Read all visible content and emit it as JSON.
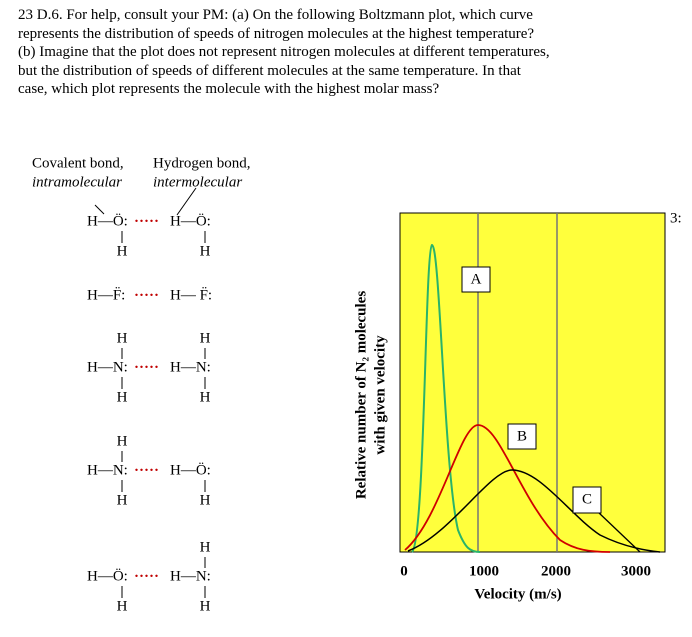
{
  "question": {
    "lines": [
      "23 D.6.  For help, consult your PM: (a) On the following Boltzmann plot, which curve",
      "represents the distribution of speeds of nitrogen molecules at the highest temperature?",
      "(b) Imagine that the plot does not represent nitrogen molecules at different temperatures,",
      "but the distribution of speeds of different molecules at the same temperature.  In that",
      "case, which plot represents the molecule with the highest molar mass?"
    ]
  },
  "legend": {
    "covalent": "Covalent bond,",
    "covalent_sub": "intramolecular",
    "hydrogen": "Hydrogen bond,",
    "hydrogen_sub": "intermolecular"
  },
  "pairs": [
    {
      "donor": "H—Ö:",
      "bond": "·····",
      "acceptor": "H—Ö:",
      "donor_below": "H",
      "acceptor_below": "H"
    },
    {
      "donor": "H—F̈:",
      "bond": "·····",
      "acceptor": "H— F̈:"
    },
    {
      "donor": "H—N:",
      "bond": "·····",
      "acceptor": "H—N:",
      "donor_above": "H",
      "donor_below": "H",
      "acceptor_above": "H",
      "acceptor_below": "H"
    },
    {
      "donor": "H—N:",
      "bond": "·····",
      "acceptor": "H—Ö:",
      "donor_above": "H",
      "donor_below": "H",
      "acceptor_below": "H"
    },
    {
      "donor": "H—Ö:",
      "bond": "·····",
      "acceptor": "H—N:",
      "donor_below": "H",
      "acceptor_above": "H",
      "acceptor_below": "H"
    }
  ],
  "plot": {
    "y_label": [
      "Relative number of N₂ molecules",
      "with given velocity"
    ],
    "x_label": "Velocity (m/s)",
    "xticks": [
      0,
      1000,
      2000,
      3000
    ],
    "curve_labels": [
      "A",
      "B",
      "C"
    ],
    "corner_text": "3:"
  }
}
